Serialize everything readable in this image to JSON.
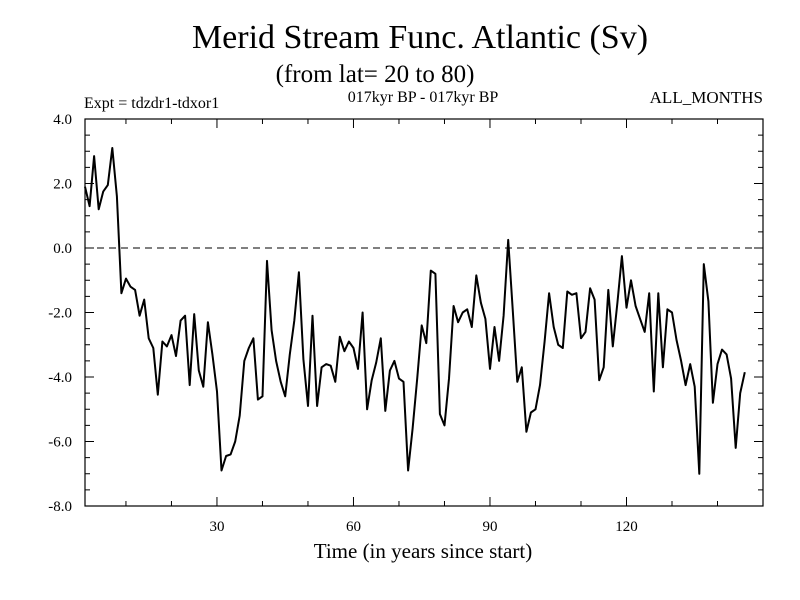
{
  "chart_data": {
    "type": "line",
    "title": "Merid Stream Func. Atlantic (Sv)",
    "subtitle": "(from lat= 20 to 80)",
    "annotations": {
      "left": "Expt = tdzdr1-tdxor1",
      "center": "017kyr BP - 017kyr BP",
      "right": "ALL_MONTHS"
    },
    "xlabel": "Time (in years since start)",
    "ylabel": "",
    "xlim": [
      1,
      150
    ],
    "ylim": [
      -8.0,
      4.0
    ],
    "x_ticks": [
      30,
      60,
      90,
      120
    ],
    "x_tick_labels": [
      "30",
      "60",
      "90",
      "120"
    ],
    "y_ticks": [
      -8.0,
      -6.0,
      -4.0,
      -2.0,
      0.0,
      2.0,
      4.0
    ],
    "y_tick_labels": [
      "-8.0",
      "-6.0",
      "-4.0",
      "-2.0",
      "0.0",
      "2.0",
      "4.0"
    ],
    "reference_line": {
      "y": 0.0,
      "style": "dashed"
    },
    "line_color": "#000000",
    "series": [
      {
        "name": "Merid Stream Func.",
        "x_start": 1,
        "x_step": 1,
        "values": [
          1.9,
          1.3,
          2.85,
          1.2,
          1.75,
          1.95,
          3.1,
          1.6,
          -1.4,
          -0.95,
          -1.2,
          -1.3,
          -2.1,
          -1.6,
          -2.8,
          -3.1,
          -4.55,
          -2.9,
          -3.05,
          -2.7,
          -3.35,
          -2.25,
          -2.1,
          -4.25,
          -2.05,
          -3.8,
          -4.3,
          -2.3,
          -3.3,
          -4.45,
          -6.9,
          -6.45,
          -6.4,
          -6.0,
          -5.2,
          -3.5,
          -3.1,
          -2.8,
          -4.7,
          -4.6,
          -0.4,
          -2.55,
          -3.5,
          -4.15,
          -4.6,
          -3.3,
          -2.25,
          -0.75,
          -3.45,
          -4.9,
          -2.1,
          -4.9,
          -3.7,
          -3.6,
          -3.65,
          -4.15,
          -2.75,
          -3.2,
          -2.9,
          -3.1,
          -3.75,
          -2.0,
          -5.0,
          -4.1,
          -3.55,
          -2.8,
          -5.05,
          -3.8,
          -3.5,
          -4.05,
          -4.15,
          -6.9,
          -5.6,
          -4.05,
          -2.4,
          -2.95,
          -0.7,
          -0.8,
          -5.15,
          -5.5,
          -4.05,
          -1.8,
          -2.3,
          -2.0,
          -1.9,
          -2.45,
          -0.85,
          -1.7,
          -2.2,
          -3.75,
          -2.45,
          -3.5,
          -2.1,
          0.25,
          -1.9,
          -4.15,
          -3.7,
          -5.7,
          -5.1,
          -5.0,
          -4.25,
          -2.9,
          -1.4,
          -2.45,
          -3.0,
          -3.1,
          -1.35,
          -1.45,
          -1.4,
          -2.8,
          -2.6,
          -1.25,
          -1.6,
          -4.1,
          -3.7,
          -1.3,
          -3.05,
          -1.7,
          -0.25,
          -1.85,
          -1.0,
          -1.8,
          -2.2,
          -2.6,
          -1.4,
          -4.45,
          -1.4,
          -3.7,
          -1.9,
          -2.0,
          -2.85,
          -3.5,
          -4.25,
          -3.6,
          -4.3,
          -7.0,
          -0.5,
          -1.65,
          -4.8,
          -3.6,
          -3.15,
          -3.3,
          -4.05,
          -6.2,
          -4.5,
          -3.85
        ]
      }
    ]
  }
}
